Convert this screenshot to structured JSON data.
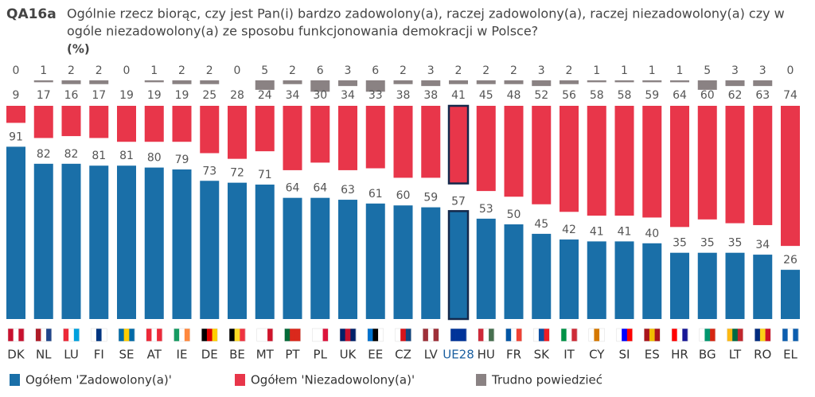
{
  "chart_data": {
    "type": "bar",
    "code": "QA16a",
    "title": [
      "Ogólnie rzecz biorąc, czy jest Pan(i) bardzo zadowolony(a), raczej zadowolony(a), raczej niezadowolony(a) czy w",
      "ogóle niezadowolony(a) ze sposobu funkcjonowania demokracji w Polsce?"
    ],
    "unit": "(%)",
    "categories": [
      "DK",
      "NL",
      "LU",
      "FI",
      "SE",
      "AT",
      "IE",
      "DE",
      "BE",
      "MT",
      "PT",
      "PL",
      "UK",
      "EE",
      "CZ",
      "LV",
      "UE28",
      "HU",
      "FR",
      "SK",
      "IT",
      "CY",
      "SI",
      "ES",
      "HR",
      "BG",
      "LT",
      "RO",
      "EL"
    ],
    "series": [
      {
        "name": "Ogółem 'Zadowolony(a)'",
        "color": "#1a6fa8",
        "values": [
          91,
          82,
          82,
          81,
          81,
          80,
          79,
          73,
          72,
          71,
          64,
          64,
          63,
          61,
          60,
          59,
          57,
          53,
          50,
          45,
          42,
          41,
          41,
          40,
          35,
          35,
          35,
          34,
          26
        ]
      },
      {
        "name": "Ogółem 'Niezadowolony(a)'",
        "color": "#e8364a",
        "values": [
          9,
          17,
          16,
          17,
          19,
          19,
          19,
          25,
          28,
          24,
          34,
          30,
          34,
          33,
          38,
          38,
          41,
          45,
          48,
          52,
          56,
          58,
          58,
          59,
          64,
          60,
          62,
          63,
          74
        ]
      },
      {
        "name": "Trudno powiedzieć",
        "color": "#8a8283",
        "values": [
          0,
          1,
          2,
          2,
          0,
          1,
          2,
          2,
          0,
          5,
          2,
          6,
          3,
          6,
          2,
          3,
          2,
          2,
          2,
          3,
          2,
          1,
          1,
          1,
          1,
          5,
          3,
          3,
          0
        ]
      }
    ]
  }
}
